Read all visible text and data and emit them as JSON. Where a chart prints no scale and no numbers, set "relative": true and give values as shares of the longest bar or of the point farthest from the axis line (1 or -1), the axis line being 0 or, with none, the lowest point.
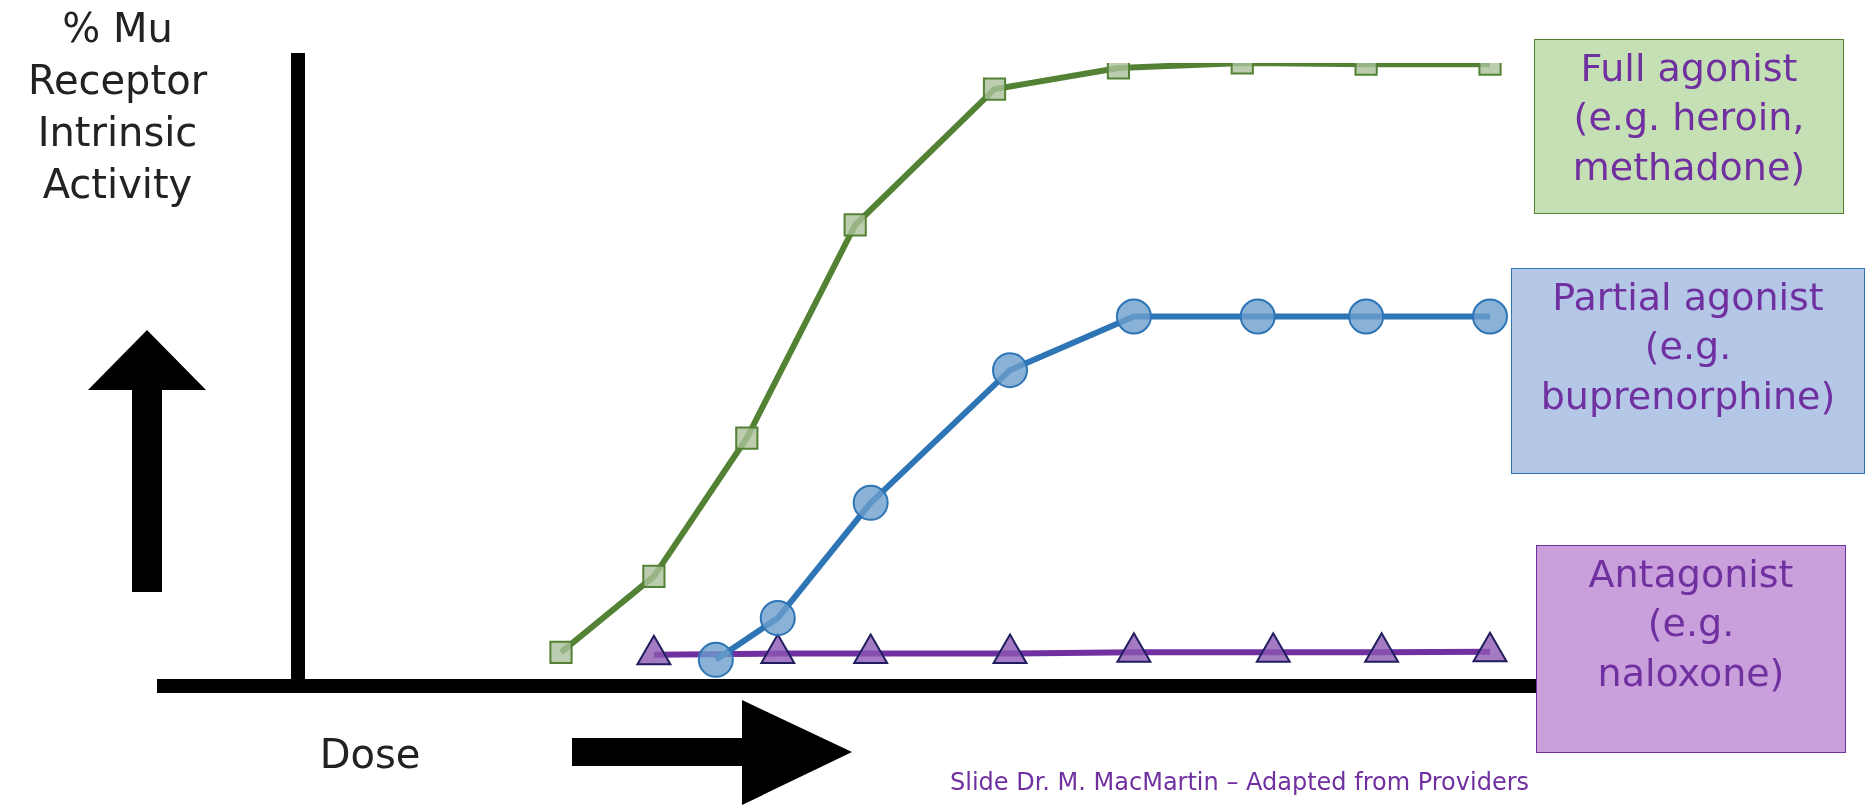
{
  "chart_data": {
    "type": "line",
    "relative": true,
    "xlabel": "Dose",
    "legend": "right",
    "annotations": [
      "% Mu Receptor Intrinsic Activity",
      "Slide Dr. M. MacMartin – Adapted from Providers"
    ],
    "categories": [
      null,
      null,
      null,
      null,
      null,
      null,
      null,
      null,
      null,
      null,
      null,
      null,
      null,
      null,
      null,
      null,
      null,
      null,
      null,
      null,
      null,
      null,
      null,
      null,
      null,
      null,
      null,
      null,
      null,
      null,
      null,
      null,
      null,
      null,
      null,
      null,
      null,
      null,
      null,
      null,
      null,
      null,
      null,
      null,
      null,
      null,
      null,
      null,
      null,
      null,
      null,
      null,
      null,
      null,
      null,
      null,
      null,
      null,
      null,
      null,
      null
    ],
    "series": [
      {
        "name": "Full agonist (e.g. heroin, methadone)",
        "color": "#548235",
        "marker": "square",
        "values": [
          0.054,
          null,
          null,
          null,
          null,
          null,
          0.176,
          null,
          null,
          null,
          null,
          null,
          0.398,
          null,
          null,
          null,
          null,
          null,
          null,
          0.74,
          null,
          null,
          null,
          null,
          null,
          null,
          null,
          null,
          0.958,
          null,
          null,
          null,
          null,
          null,
          null,
          null,
          0.992,
          null,
          null,
          null,
          null,
          null,
          null,
          null,
          1,
          null,
          null,
          null,
          null,
          null,
          null,
          null,
          0.998,
          null,
          null,
          null,
          null,
          null,
          null,
          null,
          0.998
        ]
      },
      {
        "name": "Partial agonist (e.g. buprenorphine)",
        "color": "#2e75b6",
        "marker": "circle",
        "values": [
          null,
          null,
          null,
          null,
          null,
          null,
          null,
          null,
          null,
          null,
          0.042,
          null,
          null,
          null,
          0.109,
          null,
          null,
          null,
          null,
          null,
          0.294,
          null,
          null,
          null,
          null,
          null,
          null,
          null,
          null,
          0.507,
          null,
          null,
          null,
          null,
          null,
          null,
          null,
          0.593,
          null,
          null,
          null,
          null,
          null,
          null,
          null,
          0.593,
          null,
          null,
          null,
          null,
          null,
          null,
          0.593,
          null,
          null,
          null,
          null,
          null,
          null,
          null,
          0.593
        ]
      },
      {
        "name": "Antagonist (e.g. naloxone)",
        "color": "#7030a0",
        "marker": "triangle",
        "values": [
          null,
          null,
          null,
          null,
          null,
          null,
          0.05,
          null,
          null,
          null,
          null,
          null,
          null,
          null,
          0.052,
          null,
          null,
          null,
          null,
          null,
          0.052,
          null,
          null,
          null,
          null,
          null,
          null,
          null,
          null,
          0.052,
          null,
          null,
          null,
          null,
          null,
          null,
          null,
          0.054,
          null,
          null,
          null,
          null,
          null,
          null,
          null,
          null,
          0.054,
          null,
          null,
          null,
          null,
          null,
          null,
          0.054,
          null,
          null,
          null,
          null,
          null,
          null,
          0.055
        ]
      }
    ]
  }
}
